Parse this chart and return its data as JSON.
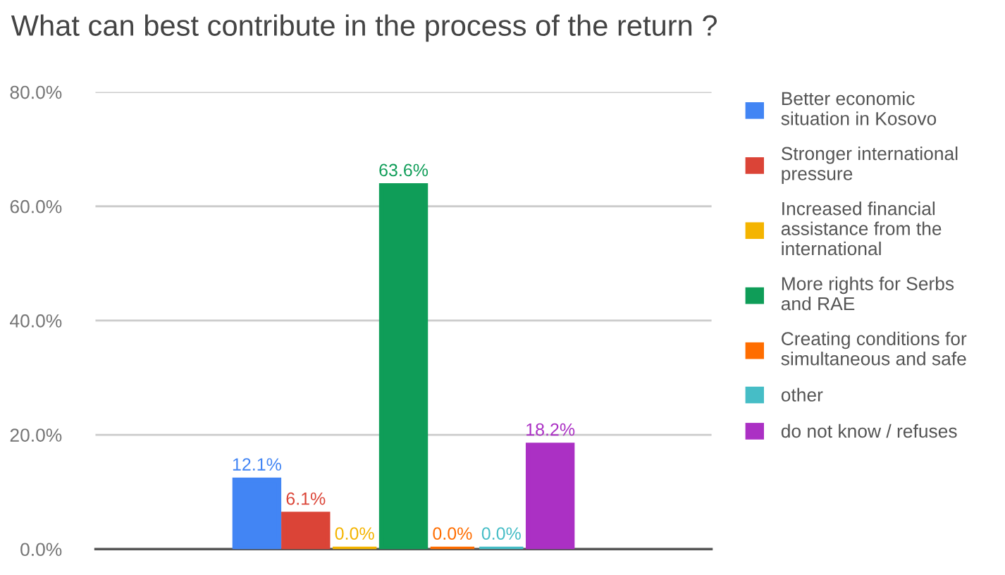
{
  "chart_data": {
    "type": "bar",
    "title": "What can best contribute in the process of the return ?",
    "categories": [
      null
    ],
    "series": [
      {
        "name": "Better economic\nsituation in Kosovo",
        "color": "#4285f4",
        "values": [
          12.1
        ],
        "value_labels": [
          "12.1%"
        ]
      },
      {
        "name": "Stronger international\npressure",
        "color": "#db4437",
        "values": [
          6.1
        ],
        "value_labels": [
          "6.1%"
        ]
      },
      {
        "name": "Increased financial\nassistance from the\ninternational",
        "color": "#f4b400",
        "values": [
          0.0
        ],
        "value_labels": [
          "0.0%"
        ]
      },
      {
        "name": "More rights for Serbs\nand RAE",
        "color": "#0f9d58",
        "values": [
          63.6
        ],
        "value_labels": [
          "63.6%"
        ]
      },
      {
        "name": "Creating conditions for\nsimultaneous and safe",
        "color": "#ff6d00",
        "values": [
          0.0
        ],
        "value_labels": [
          "0.0%"
        ]
      },
      {
        "name": "other",
        "color": "#46bdc6",
        "values": [
          0.0
        ],
        "value_labels": [
          "0.0%"
        ]
      },
      {
        "name": "do not know / refuses",
        "color": "#ab30c4",
        "values": [
          18.2
        ],
        "value_labels": [
          "18.2%"
        ]
      }
    ],
    "ylim": [
      0,
      80
    ],
    "yticks": [
      {
        "value": 0,
        "label": "0.0%"
      },
      {
        "value": 20,
        "label": "20.0%"
      },
      {
        "value": 40,
        "label": "40.0%"
      },
      {
        "value": 60,
        "label": "60.0%"
      },
      {
        "value": 80,
        "label": "80.0%"
      }
    ],
    "grid": "y",
    "legend": "right"
  }
}
